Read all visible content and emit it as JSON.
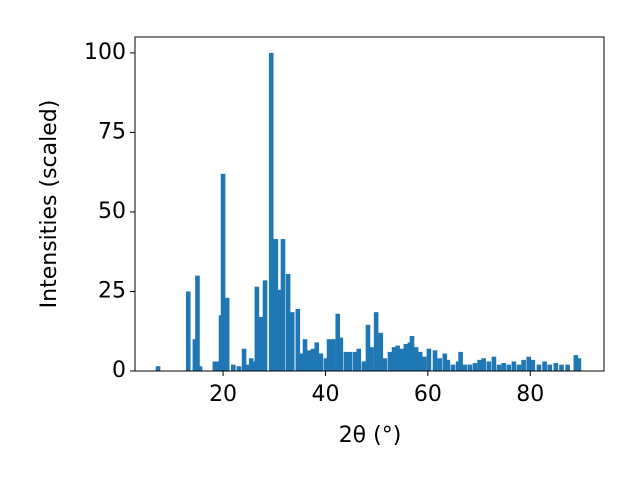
{
  "chart_data": {
    "type": "bar",
    "xlabel": "2θ (°)",
    "ylabel": "Intensities (scaled)",
    "x": [
      7.3,
      13.2,
      14.5,
      15,
      15.5,
      18.4,
      19,
      19.6,
      20,
      20.8,
      22,
      23.1,
      24.1,
      24.7,
      25.5,
      26,
      26.6,
      27.4,
      28.2,
      29.4,
      30.3,
      30.9,
      31.7,
      32.7,
      33.5,
      34.6,
      35.4,
      36,
      36.8,
      37.6,
      38.3,
      39.1,
      40.1,
      40.7,
      41.5,
      42.4,
      43,
      44,
      44.8,
      45.8,
      46.5,
      47.5,
      48.3,
      49,
      49.9,
      50.8,
      51.6,
      52.6,
      53.4,
      54.1,
      54.9,
      55.7,
      56.5,
      56.9,
      57.7,
      58.5,
      59.3,
      60.2,
      61.4,
      62.3,
      63.3,
      63.9,
      64.9,
      65.9,
      66.4,
      67.2,
      68.2,
      69.2,
      70.1,
      70.9,
      71.9,
      72.9,
      73.9,
      74.8,
      75.8,
      76.8,
      77.8,
      78.7,
      79.7,
      80.5,
      81.7,
      82.8,
      83.8,
      85,
      86.1,
      87.3,
      88.9,
      89.5
    ],
    "values": [
      1.5,
      25,
      10,
      30,
      1.5,
      3,
      3,
      17.5,
      62,
      23,
      2,
      1.5,
      7,
      2,
      4,
      3,
      26.5,
      17,
      28.5,
      100,
      41.5,
      25.5,
      41.5,
      30.5,
      18.5,
      19.5,
      5.5,
      10,
      6.5,
      7,
      9,
      5.5,
      4,
      10,
      10,
      18,
      10.5,
      6,
      6,
      6,
      7,
      3,
      14.5,
      7.5,
      18.5,
      12,
      4,
      6,
      7.5,
      8,
      7,
      8.5,
      9,
      11,
      7.5,
      6,
      4.5,
      7,
      6.5,
      4,
      5.5,
      3.5,
      2,
      3,
      6,
      2,
      2,
      2.5,
      3.5,
      4,
      3,
      4.5,
      2,
      2.5,
      2,
      3,
      2,
      3.5,
      4.5,
      3.5,
      2,
      3,
      2,
      2.5,
      2,
      2,
      5,
      4
    ],
    "color": "#1f77b4",
    "xlim": [
      2.8,
      94.4
    ],
    "xticks": [
      20,
      40,
      60,
      80
    ],
    "ylim": [
      0,
      105
    ],
    "yticks": [
      0,
      25,
      50,
      75,
      100
    ],
    "grid": false
  }
}
